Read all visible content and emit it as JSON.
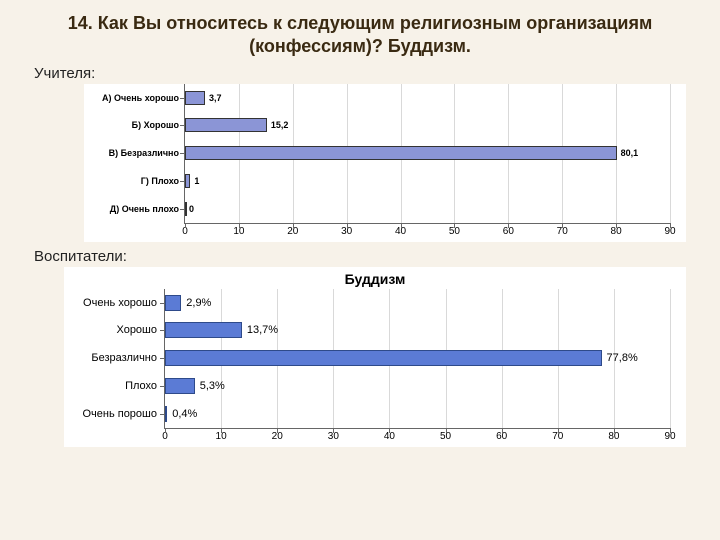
{
  "title": "14. Как Вы относитесь к следующим религиозным организациям (конфессиям)? Буддизм.",
  "group1_label": "Учителя:",
  "group2_label": "Воспитатели:",
  "chart1": {
    "type": "bar-horizontal",
    "categories": [
      "А) Очень хорошо",
      "Б) Хорошо",
      "В) Безразлично",
      "Г) Плохо",
      "Д) Очень плохо"
    ],
    "values": [
      3.7,
      15.2,
      80.1,
      1,
      0
    ],
    "value_labels": [
      "3,7",
      "15,2",
      "80,1",
      "1",
      "0"
    ],
    "xlim": [
      0,
      90
    ],
    "xtick_step": 10,
    "xticks": [
      "0",
      "10",
      "20",
      "30",
      "40",
      "50",
      "60",
      "70",
      "80",
      "90"
    ],
    "bar_fill": "#8b95d6",
    "bar_border": "#333333",
    "grid_color": "#d9d9d9",
    "axis_color": "#666666",
    "background": "#ffffff",
    "label_fontsize": 9,
    "tick_fontsize": 10
  },
  "chart2": {
    "type": "bar-horizontal",
    "title": "Буддизм",
    "categories": [
      "Очень хорошо",
      "Хорошо",
      "Безразлично",
      "Плохо",
      "Очень порошо"
    ],
    "values": [
      2.9,
      13.7,
      77.8,
      5.3,
      0.4
    ],
    "value_labels": [
      "2,9%",
      "13,7%",
      "77,8%",
      "5,3%",
      "0,4%"
    ],
    "xlim": [
      0,
      90
    ],
    "xtick_step": 10,
    "xticks": [
      "0",
      "10",
      "20",
      "30",
      "40",
      "50",
      "60",
      "70",
      "80",
      "90"
    ],
    "bar_fill": "#5b7bd5",
    "bar_border": "#2e4a8a",
    "grid_color": "#d9d9d9",
    "axis_color": "#666666",
    "background": "#ffffff",
    "title_fontsize": 14,
    "label_fontsize": 11,
    "tick_fontsize": 10
  },
  "page_background": "#f7f2e9"
}
